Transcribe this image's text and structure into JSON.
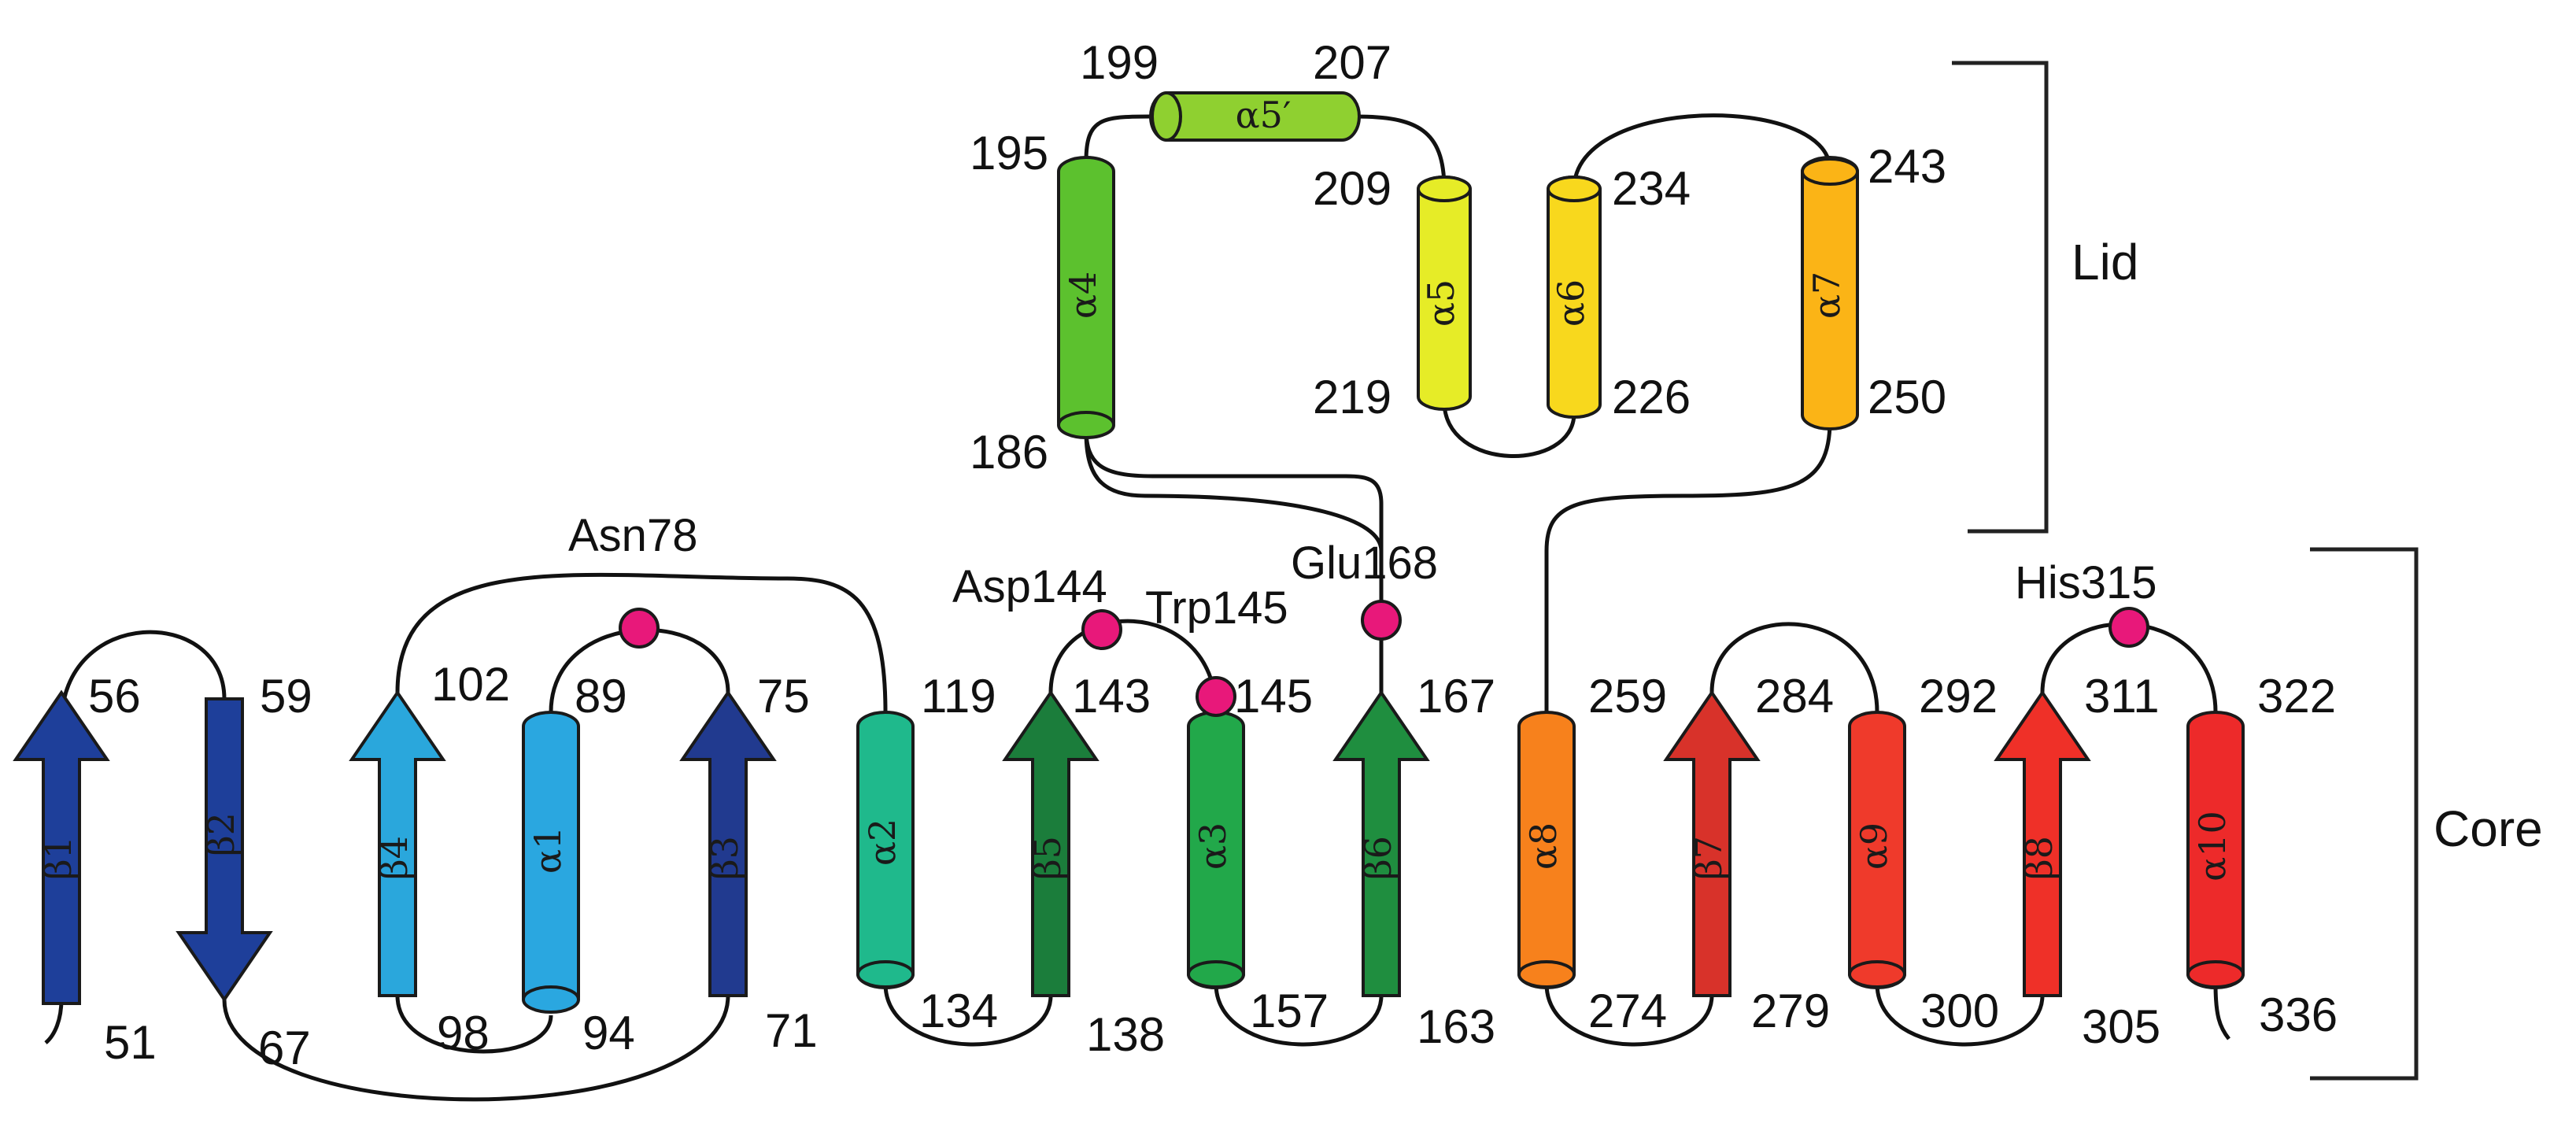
{
  "domains": {
    "lid": "Lid",
    "core": "Core"
  },
  "strands": [
    {
      "label": "β1",
      "color": "#1e3f9a"
    },
    {
      "label": "β2",
      "color": "#1e3f9a"
    },
    {
      "label": "β4",
      "color": "#2aa7dc"
    },
    {
      "label": "β3",
      "color": "#213a8f"
    },
    {
      "label": "β5",
      "color": "#1b7d3b"
    },
    {
      "label": "β6",
      "color": "#1f8e3f"
    },
    {
      "label": "β7",
      "color": "#d8322a"
    },
    {
      "label": "β8",
      "color": "#ef3028"
    }
  ],
  "helices": [
    {
      "label": "α1",
      "color": "#2aa7e0"
    },
    {
      "label": "α2",
      "color": "#1fb98c"
    },
    {
      "label": "α3",
      "color": "#22a84a"
    },
    {
      "label": "α4",
      "color": "#5cc12e"
    },
    {
      "label": "α5′",
      "color": "#8fd030"
    },
    {
      "label": "α5",
      "color": "#e6ec27"
    },
    {
      "label": "α6",
      "color": "#f8d81d"
    },
    {
      "label": "α7",
      "color": "#fbb416"
    },
    {
      "label": "α8",
      "color": "#f7811c"
    },
    {
      "label": "α9",
      "color": "#ef3a2b"
    },
    {
      "label": "α10",
      "color": "#ed2a2a"
    }
  ],
  "residue_numbers": [
    "51",
    "56",
    "59",
    "67",
    "102",
    "98",
    "89",
    "94",
    "75",
    "71",
    "119",
    "134",
    "143",
    "138",
    "145",
    "157",
    "167",
    "163",
    "195",
    "186",
    "199",
    "207",
    "209",
    "219",
    "234",
    "226",
    "243",
    "250",
    "259",
    "274",
    "284",
    "279",
    "292",
    "300",
    "311",
    "305",
    "322",
    "336"
  ],
  "key_residues": {
    "asn78": "Asn78",
    "asp144": "Asp144",
    "trp145": "Trp145",
    "glu168": "Glu168",
    "his315": "His315"
  },
  "key_residue_color": "#e8187a"
}
